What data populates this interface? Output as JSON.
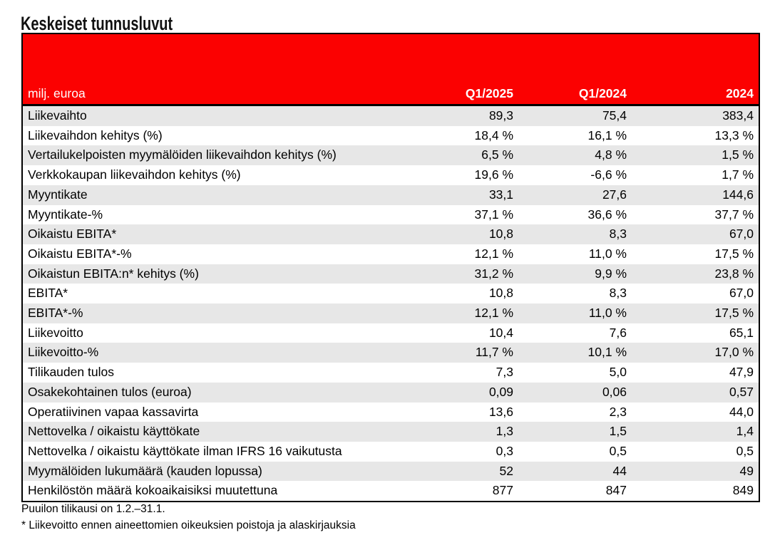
{
  "page": {
    "title": "Keskeiset tunnusluvut"
  },
  "colors": {
    "header_red": "#FB0101",
    "row_alt_gray": "#E7E7E7",
    "header_text": "#FFFFFF",
    "body_text": "#000000",
    "table_border": "#000000"
  },
  "table": {
    "unit_label": "milj. euroa",
    "columns": [
      "Q1/2025",
      "Q1/2024",
      "2024"
    ],
    "rows": [
      {
        "label": "Liikevaihto",
        "values": [
          "89,3",
          "75,4",
          "383,4"
        ]
      },
      {
        "label": "Liikevaihdon kehitys (%)",
        "values": [
          "18,4 %",
          "16,1 %",
          "13,3 %"
        ]
      },
      {
        "label": "Vertailukelpoisten myymälöiden liikevaihdon kehitys (%)",
        "values": [
          "6,5 %",
          "4,8 %",
          "1,5 %"
        ]
      },
      {
        "label": "Verkkokaupan liikevaihdon kehitys (%)",
        "values": [
          "19,6 %",
          "-6,6 %",
          "1,7 %"
        ]
      },
      {
        "label": "Myyntikate",
        "values": [
          "33,1",
          "27,6",
          "144,6"
        ]
      },
      {
        "label": "Myyntikate-%",
        "values": [
          "37,1 %",
          "36,6 %",
          "37,7 %"
        ]
      },
      {
        "label": "Oikaistu EBITA*",
        "values": [
          "10,8",
          "8,3",
          "67,0"
        ]
      },
      {
        "label": "Oikaistu EBITA*-%",
        "values": [
          "12,1 %",
          "11,0 %",
          "17,5 %"
        ]
      },
      {
        "label": "Oikaistun EBITA:n* kehitys (%)",
        "values": [
          "31,2 %",
          "9,9 %",
          "23,8 %"
        ]
      },
      {
        "label": "EBITA*",
        "values": [
          "10,8",
          "8,3",
          "67,0"
        ]
      },
      {
        "label": "EBITA*-%",
        "values": [
          "12,1 %",
          "11,0 %",
          "17,5 %"
        ]
      },
      {
        "label": "Liikevoitto",
        "values": [
          "10,4",
          "7,6",
          "65,1"
        ]
      },
      {
        "label": "Liikevoitto-%",
        "values": [
          "11,7 %",
          "10,1 %",
          "17,0 %"
        ]
      },
      {
        "label": "Tilikauden tulos",
        "values": [
          "7,3",
          "5,0",
          "47,9"
        ]
      },
      {
        "label": "Osakekohtainen tulos (euroa)",
        "values": [
          "0,09",
          "0,06",
          "0,57"
        ]
      },
      {
        "label": "Operatiivinen vapaa kassavirta",
        "values": [
          "13,6",
          "2,3",
          "44,0"
        ]
      },
      {
        "label": "Nettovelka / oikaistu käyttökate",
        "values": [
          "1,3",
          "1,5",
          "1,4"
        ]
      },
      {
        "label": "Nettovelka / oikaistu käyttökate ilman IFRS 16 vaikutusta",
        "values": [
          "0,3",
          "0,5",
          "0,5"
        ]
      },
      {
        "label": "Myymälöiden lukumäärä (kauden lopussa)",
        "values": [
          "52",
          "44",
          "49"
        ]
      },
      {
        "label": "Henkilöstön määrä kokoaikaisiksi muutettuna",
        "values": [
          "877",
          "847",
          "849"
        ]
      }
    ]
  },
  "footnotes": [
    "Puuilon tilikausi on 1.2.–31.1.",
    "* Liikevoitto ennen aineettomien oikeuksien poistoja ja alaskirjauksia"
  ]
}
